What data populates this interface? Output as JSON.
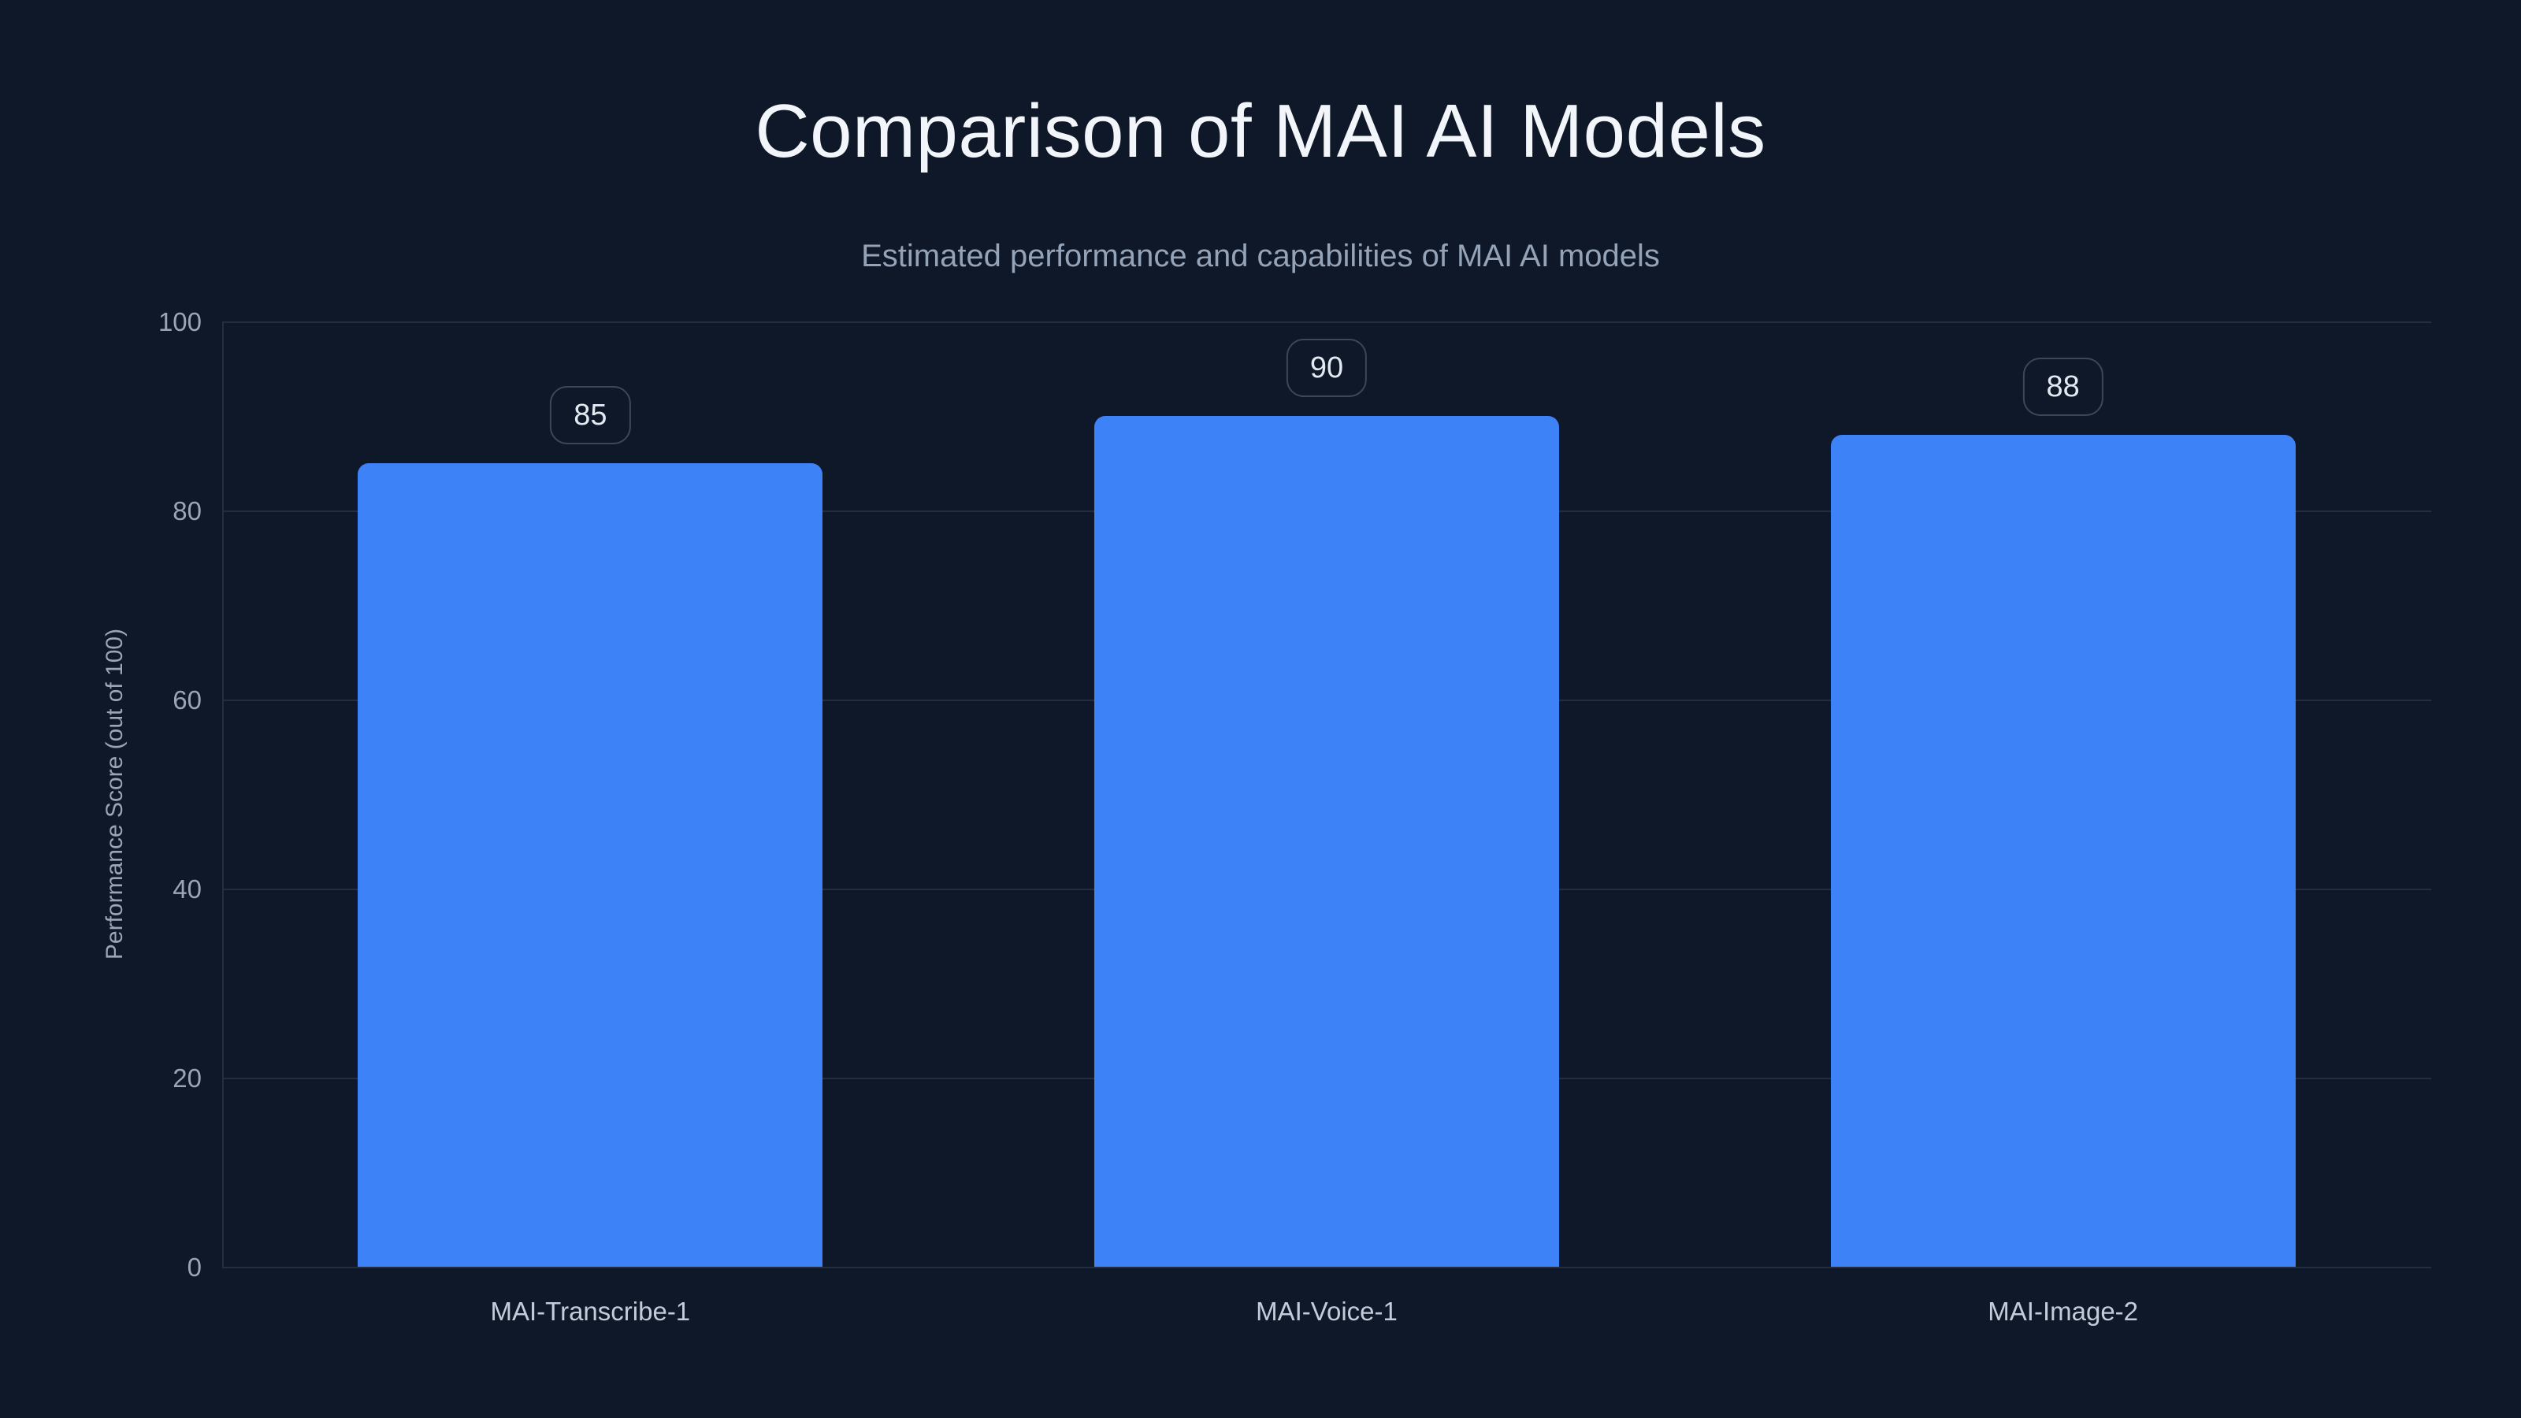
{
  "chart": {
    "title": "Comparison of MAI AI Models",
    "subtitle": "Estimated performance and capabilities of MAI AI models"
  },
  "chart_data": {
    "type": "bar",
    "title": "Comparison of MAI AI Models",
    "subtitle": "Estimated performance and capabilities of MAI AI models",
    "categories": [
      "MAI-Transcribe-1",
      "MAI-Voice-1",
      "MAI-Image-2"
    ],
    "values": [
      85,
      90,
      88
    ],
    "value_labels": [
      "85",
      "90",
      "88"
    ],
    "xlabel": "",
    "ylabel": "Performance Score (out of 100)",
    "ylim": [
      0,
      100
    ],
    "yticks": [
      0,
      20,
      40,
      60,
      80,
      100
    ],
    "grid": "horizontal",
    "legend": "none",
    "bar_orientation": "vertical",
    "colors": {
      "background": "#0f1828",
      "bar": "#3d82f6",
      "title": "#f2f5f9",
      "subtitle": "#94a3b8",
      "axis_text": "#9aa6b8",
      "category_text": "#c3cdda",
      "gridline": "#232e42",
      "badge_border": "#3c4759",
      "badge_text": "#e3e9f1"
    }
  }
}
